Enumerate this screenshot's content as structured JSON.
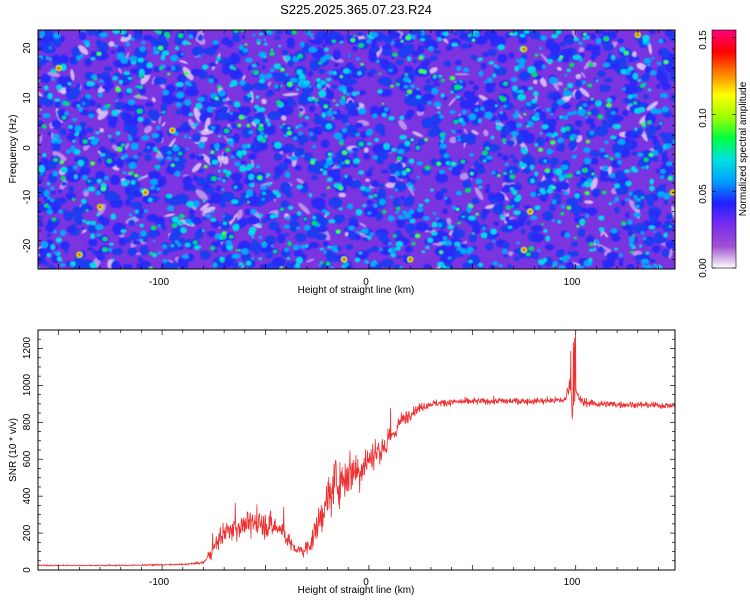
{
  "title": "S225.2025.365.07.23.R24",
  "chart_data": [
    {
      "type": "heatmap",
      "id": "spectrogram",
      "xlabel": "Height of straight line (km)",
      "ylabel": "Frequency (Hz)",
      "xlim": [
        -160,
        148
      ],
      "ylim": [
        -25,
        25
      ],
      "xticks": [
        -100,
        0,
        100
      ],
      "xtick_labels": [
        "-100",
        "0",
        "100"
      ],
      "yticks": [
        20,
        10,
        0,
        -10,
        -20
      ],
      "ytick_labels": [
        "20",
        "10",
        "0",
        "-10",
        "-20"
      ],
      "colorbar": {
        "label": "Normalized spectral amplitude",
        "range": [
          0,
          0.155
        ],
        "ticks": [
          0.0,
          0.05,
          0.1,
          0.15
        ],
        "tick_labels": [
          "0.00",
          "0.05",
          "0.10",
          "0.15"
        ],
        "colors": [
          "#ffffff",
          "#a050d0",
          "#7a2cf0",
          "#2020ff",
          "#00a0ff",
          "#00e0e0",
          "#00ff40",
          "#a0ff00",
          "#ffff00",
          "#ff8000",
          "#ff0000",
          "#ff0080"
        ]
      },
      "description": "Noise-like speckle: mostly purple/blue, with scattered cyan/green blobs and rare yellow/red peaks"
    },
    {
      "type": "line",
      "id": "snr",
      "xlabel": "Height of straight line (km)",
      "ylabel": "SNR (10 * v/v)",
      "xlim": [
        -160,
        148
      ],
      "ylim": [
        0,
        1300
      ],
      "xticks": [
        -100,
        0,
        100
      ],
      "xtick_labels": [
        "-100",
        "0",
        "100"
      ],
      "yticks": [
        0,
        200,
        400,
        600,
        800,
        1000,
        1200
      ],
      "ytick_labels": [
        "0",
        "200",
        "400",
        "600",
        "800",
        "1000",
        "1200"
      ],
      "color": "#ee3030",
      "series": [
        {
          "name": "SNR",
          "x": [
            -160,
            -120,
            -90,
            -80,
            -77,
            -72,
            -65,
            -55,
            -48,
            -42,
            -38,
            -35,
            -32,
            -28,
            -24,
            -20,
            -16,
            -12,
            -8,
            -4,
            0,
            5,
            10,
            15,
            20,
            25,
            30,
            40,
            60,
            80,
            95,
            97,
            99,
            100,
            103,
            110,
            130,
            148
          ],
          "values": [
            25,
            25,
            30,
            40,
            80,
            180,
            230,
            260,
            240,
            220,
            140,
            110,
            100,
            150,
            260,
            390,
            470,
            510,
            540,
            560,
            600,
            650,
            700,
            800,
            850,
            880,
            900,
            910,
            915,
            915,
            920,
            1020,
            850,
            960,
            910,
            900,
            895,
            890
          ],
          "noise": [
            4,
            4,
            5,
            8,
            35,
            70,
            80,
            90,
            90,
            80,
            50,
            40,
            40,
            70,
            110,
            150,
            170,
            160,
            150,
            130,
            120,
            110,
            90,
            60,
            40,
            30,
            25,
            25,
            25,
            25,
            25,
            80,
            120,
            40,
            35,
            25,
            22,
            20
          ]
        }
      ]
    }
  ]
}
